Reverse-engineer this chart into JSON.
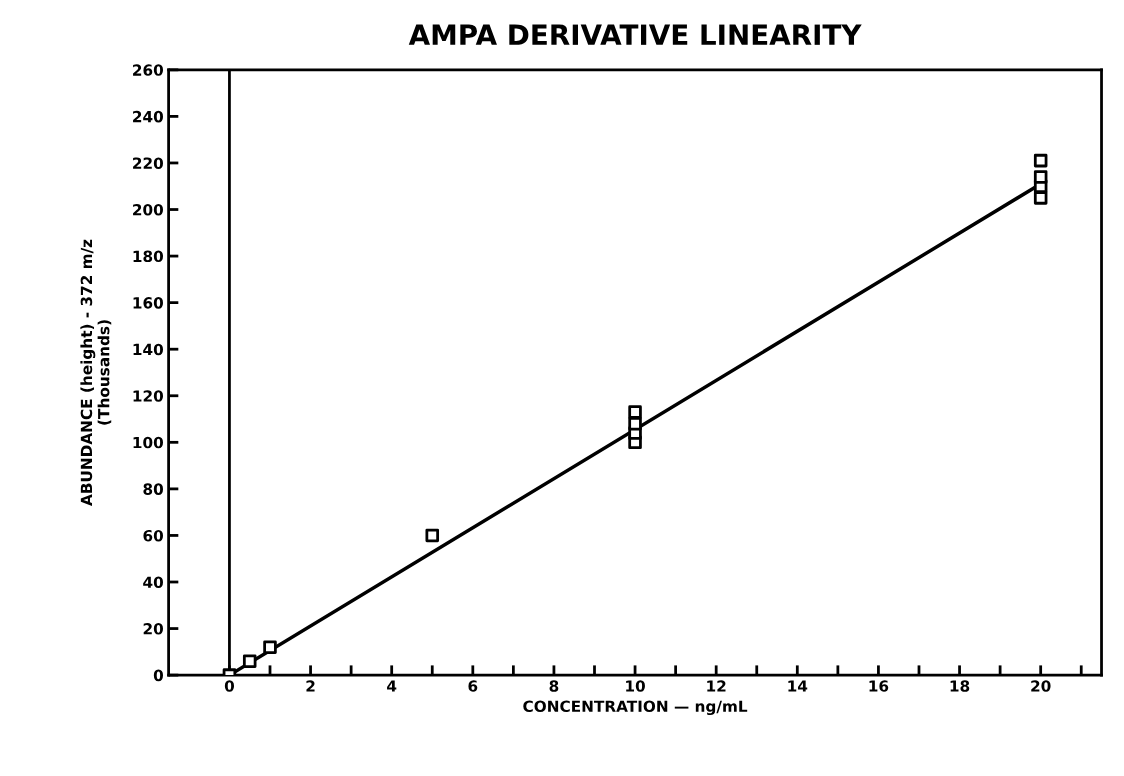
{
  "chart_data": {
    "type": "scatter",
    "title": "AMPA DERIVATIVE LINEARITY",
    "xlabel": "CONCENTRATION — ng/mL",
    "ylabel": "ABUNDANCE (height) - 372 m/z\n(Thousands)",
    "series": [
      {
        "color": "#000000",
        "marker": "square",
        "x": [
          0,
          0.5,
          1,
          5,
          10,
          10,
          10,
          10,
          20,
          20,
          20,
          20
        ],
        "values": [
          0,
          6,
          12,
          60,
          100,
          104,
          108,
          113,
          205,
          210,
          214,
          221
        ]
      },
      {
        "type": "line",
        "color": "#000000",
        "marker": "none",
        "line_style": "solid",
        "x": [
          0,
          20
        ],
        "values": [
          0,
          211
        ]
      }
    ],
    "xlim": [
      -1.5,
      21.5
    ],
    "ylim": [
      0,
      260
    ],
    "xticks": [
      0,
      {
        "value": 1,
        "label": null
      },
      2,
      {
        "value": 3,
        "label": null
      },
      4,
      {
        "value": 5,
        "label": null
      },
      6,
      {
        "value": 7,
        "label": null
      },
      8,
      {
        "value": 9,
        "label": null
      },
      10,
      {
        "value": 11,
        "label": null
      },
      12,
      {
        "value": 13,
        "label": null
      },
      14,
      {
        "value": 15,
        "label": null
      },
      16,
      {
        "value": 17,
        "label": null
      },
      18,
      {
        "value": 19,
        "label": null
      },
      20,
      {
        "value": 21,
        "label": null
      }
    ],
    "yticks": [
      0,
      20,
      40,
      60,
      80,
      100,
      120,
      140,
      160,
      180,
      200,
      220,
      240,
      260
    ],
    "ref_lines": [
      {
        "axis": "x",
        "value": 0,
        "color": "#000000",
        "line_style": "solid"
      }
    ],
    "grid": false,
    "legend": false
  }
}
